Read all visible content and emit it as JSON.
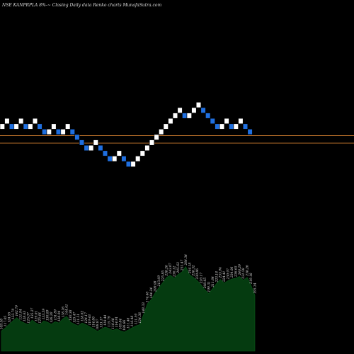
{
  "header": {
    "title": "NSE KANPRPLA 8%-~ Closing Daily data Renko charts MunafaSutra.com"
  },
  "colors": {
    "background": "#000000",
    "brick_up": "#ffffff",
    "brick_down": "#1f6fe0",
    "horizontal_line": "#b06a28",
    "volume_fill": "#053b10",
    "label_text": "#dddddd"
  },
  "chart_data": [
    {
      "type": "renko",
      "title": "NSE KANPRPLA 8%-~ Closing Daily data Renko charts MunafaSutra.com",
      "brick_step": 1,
      "bricks": [
        {
          "dir": "up",
          "level": 7
        },
        {
          "dir": "up",
          "level": 8
        },
        {
          "dir": "down",
          "level": 7
        },
        {
          "dir": "up",
          "level": 7
        },
        {
          "dir": "up",
          "level": 8
        },
        {
          "dir": "down",
          "level": 7
        },
        {
          "dir": "up",
          "level": 7
        },
        {
          "dir": "up",
          "level": 8
        },
        {
          "dir": "down",
          "level": 7
        },
        {
          "dir": "down",
          "level": 6
        },
        {
          "dir": "up",
          "level": 6
        },
        {
          "dir": "up",
          "level": 7
        },
        {
          "dir": "down",
          "level": 6
        },
        {
          "dir": "up",
          "level": 6
        },
        {
          "dir": "up",
          "level": 7
        },
        {
          "dir": "down",
          "level": 6
        },
        {
          "dir": "down",
          "level": 5
        },
        {
          "dir": "down",
          "level": 4
        },
        {
          "dir": "down",
          "level": 3
        },
        {
          "dir": "up",
          "level": 3
        },
        {
          "dir": "up",
          "level": 4
        },
        {
          "dir": "down",
          "level": 3
        },
        {
          "dir": "down",
          "level": 2
        },
        {
          "dir": "down",
          "level": 1
        },
        {
          "dir": "up",
          "level": 1
        },
        {
          "dir": "up",
          "level": 2
        },
        {
          "dir": "down",
          "level": 1
        },
        {
          "dir": "down",
          "level": 0
        },
        {
          "dir": "up",
          "level": 0
        },
        {
          "dir": "up",
          "level": 1
        },
        {
          "dir": "up",
          "level": 2
        },
        {
          "dir": "up",
          "level": 3
        },
        {
          "dir": "up",
          "level": 4
        },
        {
          "dir": "up",
          "level": 5
        },
        {
          "dir": "up",
          "level": 6
        },
        {
          "dir": "up",
          "level": 7
        },
        {
          "dir": "up",
          "level": 8
        },
        {
          "dir": "up",
          "level": 9
        },
        {
          "dir": "up",
          "level": 10
        },
        {
          "dir": "down",
          "level": 9
        },
        {
          "dir": "up",
          "level": 9
        },
        {
          "dir": "up",
          "level": 10
        },
        {
          "dir": "up",
          "level": 11
        },
        {
          "dir": "down",
          "level": 10
        },
        {
          "dir": "down",
          "level": 9
        },
        {
          "dir": "down",
          "level": 8
        },
        {
          "dir": "down",
          "level": 7
        },
        {
          "dir": "up",
          "level": 7
        },
        {
          "dir": "up",
          "level": 8
        },
        {
          "dir": "down",
          "level": 7
        },
        {
          "dir": "up",
          "level": 7
        },
        {
          "dir": "up",
          "level": 8
        },
        {
          "dir": "down",
          "level": 7
        },
        {
          "dir": "down",
          "level": 6
        }
      ],
      "reference_lines": [
        {
          "level": 5.3
        },
        {
          "level": 3.9
        }
      ]
    },
    {
      "type": "area",
      "values": [
        109,
        116,
        125,
        133,
        141,
        132,
        128,
        124,
        135,
        128,
        124,
        133,
        130,
        125,
        131,
        128,
        138,
        144,
        130,
        125,
        121,
        128,
        124,
        119,
        114,
        108,
        113,
        118,
        115,
        110,
        114,
        109,
        106,
        111,
        116,
        121,
        124,
        148,
        174,
        184,
        200,
        213,
        225,
        238,
        243,
        236,
        245,
        251,
        264,
        244,
        238,
        230,
        220,
        208,
        199,
        211,
        223,
        233,
        224,
        230,
        234,
        236,
        240,
        231,
        238,
        219,
        195
      ],
      "labels": [
        "109.58",
        "117.05",
        "124.95",
        "133.79",
        "142.79",
        "131.94",
        "128.63",
        "125.07",
        "135.27",
        "129.01",
        "125.44",
        "133.59",
        "130.09",
        "126.20",
        "131.89",
        "128.94",
        "138.26",
        "144.41",
        "130.38",
        "125.47",
        "121.51",
        "128.62",
        "124.17",
        "119.43",
        "114.86",
        "108.87",
        "113.17",
        "118.44",
        "115.79",
        "110.48",
        "114.91",
        "109.84",
        "106.86",
        "111.46",
        "116.48",
        "121.59",
        "124.36",
        "148.33",
        "174.40",
        "184.24",
        "200.08",
        "213.69",
        "225.85",
        "238.26",
        "243.07",
        "236.12",
        "245.63",
        "251.47",
        "264.34",
        "244.18",
        "238.32",
        "230.86",
        "220.17",
        "208.65",
        "199.31",
        "211.64",
        "223.18",
        "233.94",
        "224.41",
        "230.97",
        "234.06",
        "236.65",
        "240.29",
        "231.58",
        "238.26",
        "219.18",
        "195.34"
      ]
    }
  ]
}
